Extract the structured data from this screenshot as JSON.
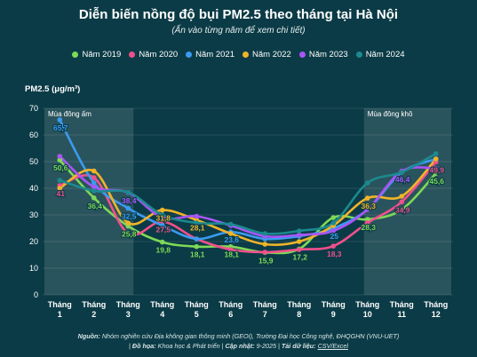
{
  "header": {
    "title": "Diễn biến nồng độ bụi PM2.5 theo tháng tại Hà Nội",
    "subtitle": "(Ấn vào từng năm để xem chi tiết)"
  },
  "footer": {
    "source_label": "Nguồn:",
    "source_text": "Nhóm nghiên cứu Địa không gian thông minh (GEOI), Trường Đại học Công nghệ, ĐHQGHN (VNU-UET)",
    "graphic_label": "Đồ họa:",
    "graphic_text": "Khoa học & Phát triển",
    "update_label": "Cập nhật:",
    "update_text": "9-2025",
    "download_label": "Tải dữ liệu:",
    "download_link": "CSV/Excel"
  },
  "chart_data": {
    "type": "line",
    "title": "Diễn biến nồng độ bụi PM2.5 theo tháng tại Hà Nội",
    "ylabel": "PM2.5 (μg/m³)",
    "xlabel": "",
    "ylim": [
      0,
      70
    ],
    "yticks": [
      0,
      10,
      20,
      30,
      40,
      50,
      60,
      70
    ],
    "grid": true,
    "legend_position": "top-center",
    "categories": [
      [
        "Tháng",
        "1"
      ],
      [
        "Tháng",
        "2"
      ],
      [
        "Tháng",
        "3"
      ],
      [
        "Tháng",
        "4"
      ],
      [
        "Tháng",
        "5"
      ],
      [
        "Tháng",
        "6"
      ],
      [
        "Tháng",
        "7"
      ],
      [
        "Tháng",
        "8"
      ],
      [
        "Tháng",
        "9"
      ],
      [
        "Tháng",
        "10"
      ],
      [
        "Tháng",
        "11"
      ],
      [
        "Tháng",
        "12"
      ]
    ],
    "shaded_regions": [
      {
        "label": "Mùa đông ấm",
        "from_month": 1,
        "to_month": 3
      },
      {
        "label": "Mùa đông khô",
        "from_month": 10,
        "to_month": 12
      }
    ],
    "series": [
      {
        "name": "Năm 2019",
        "color": "#7ed957",
        "values": [
          50.6,
          36.4,
          25.8,
          19.8,
          18.1,
          18.1,
          15.9,
          17.2,
          29.0,
          28.3,
          32.0,
          45.6
        ],
        "labels": {
          "0": "50,6",
          "1": "36,4",
          "2": "25,8",
          "3": "19,8",
          "4": "18,1",
          "5": "18,1",
          "6": "15,9",
          "7": "17,2",
          "9": "28,3",
          "11": "45,6"
        }
      },
      {
        "name": "Năm 2020",
        "color": "#f0508c",
        "values": [
          41.0,
          44.0,
          23.0,
          27.5,
          21.0,
          17.0,
          16.0,
          17.0,
          18.3,
          27.0,
          34.9,
          49.9
        ],
        "labels": {
          "0": "41",
          "3": "27,5",
          "8": "18,3",
          "10": "34,9",
          "11": "49,9"
        }
      },
      {
        "name": "Năm 2021",
        "color": "#3a9bf0",
        "values": [
          65.7,
          42.0,
          32.5,
          26.0,
          21.0,
          23.6,
          21.0,
          22.0,
          25.0,
          32.0,
          46.0,
          51.0
        ],
        "labels": {
          "0": "65,7",
          "2": "32,5",
          "5": "23,6",
          "8": "25"
        }
      },
      {
        "name": "Năm 2022",
        "color": "#f0b429",
        "values": [
          40.0,
          46.5,
          27.0,
          31.8,
          28.1,
          23.0,
          19.0,
          20.0,
          26.0,
          36.3,
          37.0,
          51.0
        ],
        "labels": {
          "3": "31,8",
          "4": "28,1",
          "9": "36,3"
        }
      },
      {
        "name": "Năm 2023",
        "color": "#a855f7",
        "values": [
          52.0,
          40.5,
          38.4,
          29.0,
          29.5,
          26.0,
          22.0,
          22.5,
          24.0,
          32.0,
          46.4,
          47.5
        ],
        "labels": {
          "2": "38,4",
          "10": "46,4"
        }
      },
      {
        "name": "Năm 2024",
        "color": "#1b8a8f",
        "values": [
          43.0,
          39.0,
          38.5,
          30.0,
          27.0,
          26.5,
          23.0,
          24.0,
          27.0,
          42.0,
          46.0,
          53.0
        ],
        "labels": {}
      }
    ]
  }
}
